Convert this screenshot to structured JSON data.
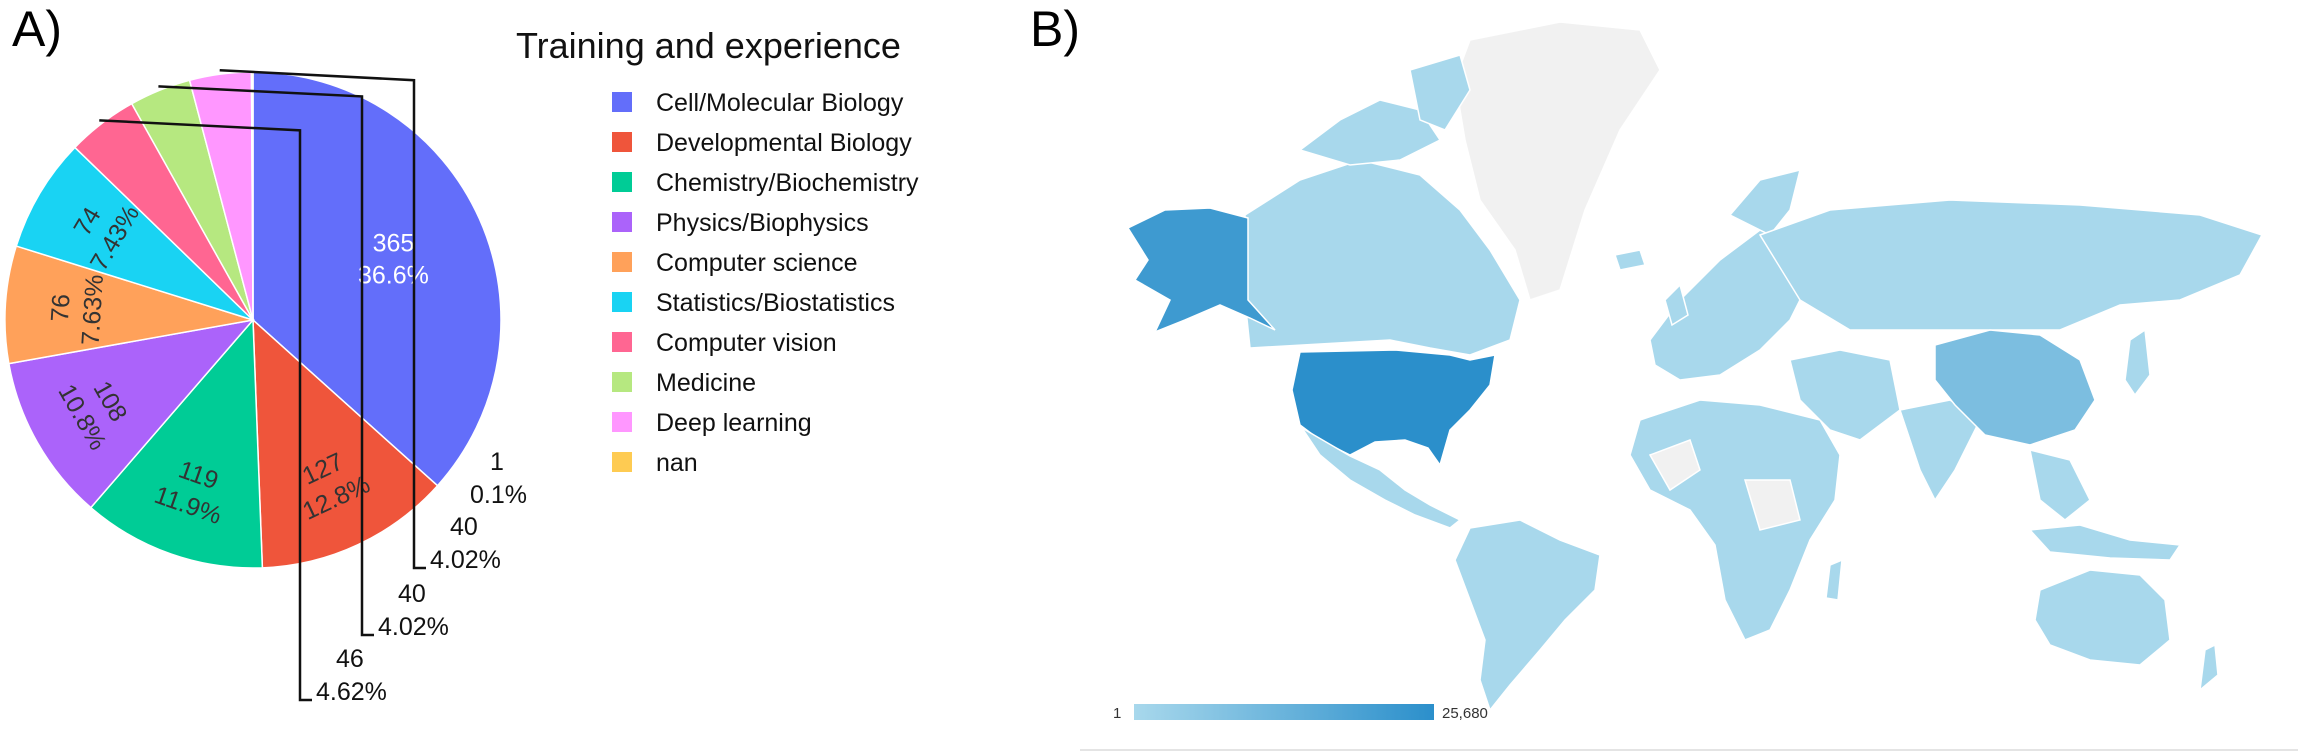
{
  "panels": {
    "a_label": "A)",
    "b_label": "B)"
  },
  "chart_data": [
    {
      "type": "pie",
      "legend_title": "Training and experience",
      "legend_position": "right",
      "slices": [
        {
          "label": "Cell/Molecular Biology",
          "value": 365,
          "percent": "36.6%",
          "color": "#636efa"
        },
        {
          "label": "Developmental Biology",
          "value": 127,
          "percent": "12.8%",
          "color": "#ef553b"
        },
        {
          "label": "Chemistry/Biochemistry",
          "value": 119,
          "percent": "11.9%",
          "color": "#00cc96"
        },
        {
          "label": "Physics/Biophysics",
          "value": 108,
          "percent": "10.8%",
          "color": "#ab63fa"
        },
        {
          "label": "Computer science",
          "value": 76,
          "percent": "7.63%",
          "color": "#ffa15a"
        },
        {
          "label": "Statistics/Biostatistics",
          "value": 74,
          "percent": "7.43%",
          "color": "#19d3f3"
        },
        {
          "label": "Computer vision",
          "value": 46,
          "percent": "4.62%",
          "color": "#ff6692"
        },
        {
          "label": "Medicine",
          "value": 40,
          "percent": "4.02%",
          "color": "#b6e880"
        },
        {
          "label": "Deep learning",
          "value": 40,
          "percent": "4.02%",
          "color": "#ff97ff"
        },
        {
          "label": "nan",
          "value": 1,
          "percent": "0.1%",
          "color": "#fecb52"
        }
      ]
    },
    {
      "type": "choropleth",
      "scale": {
        "min_label": "1",
        "max_label": "25,680",
        "min_color": "#a8d8ec",
        "max_color": "#2b8fcb"
      },
      "highlights": [
        {
          "region": "United States",
          "level": 1.0
        },
        {
          "region": "Alaska",
          "level": 0.85
        },
        {
          "region": "China",
          "level": 0.35
        }
      ]
    }
  ]
}
